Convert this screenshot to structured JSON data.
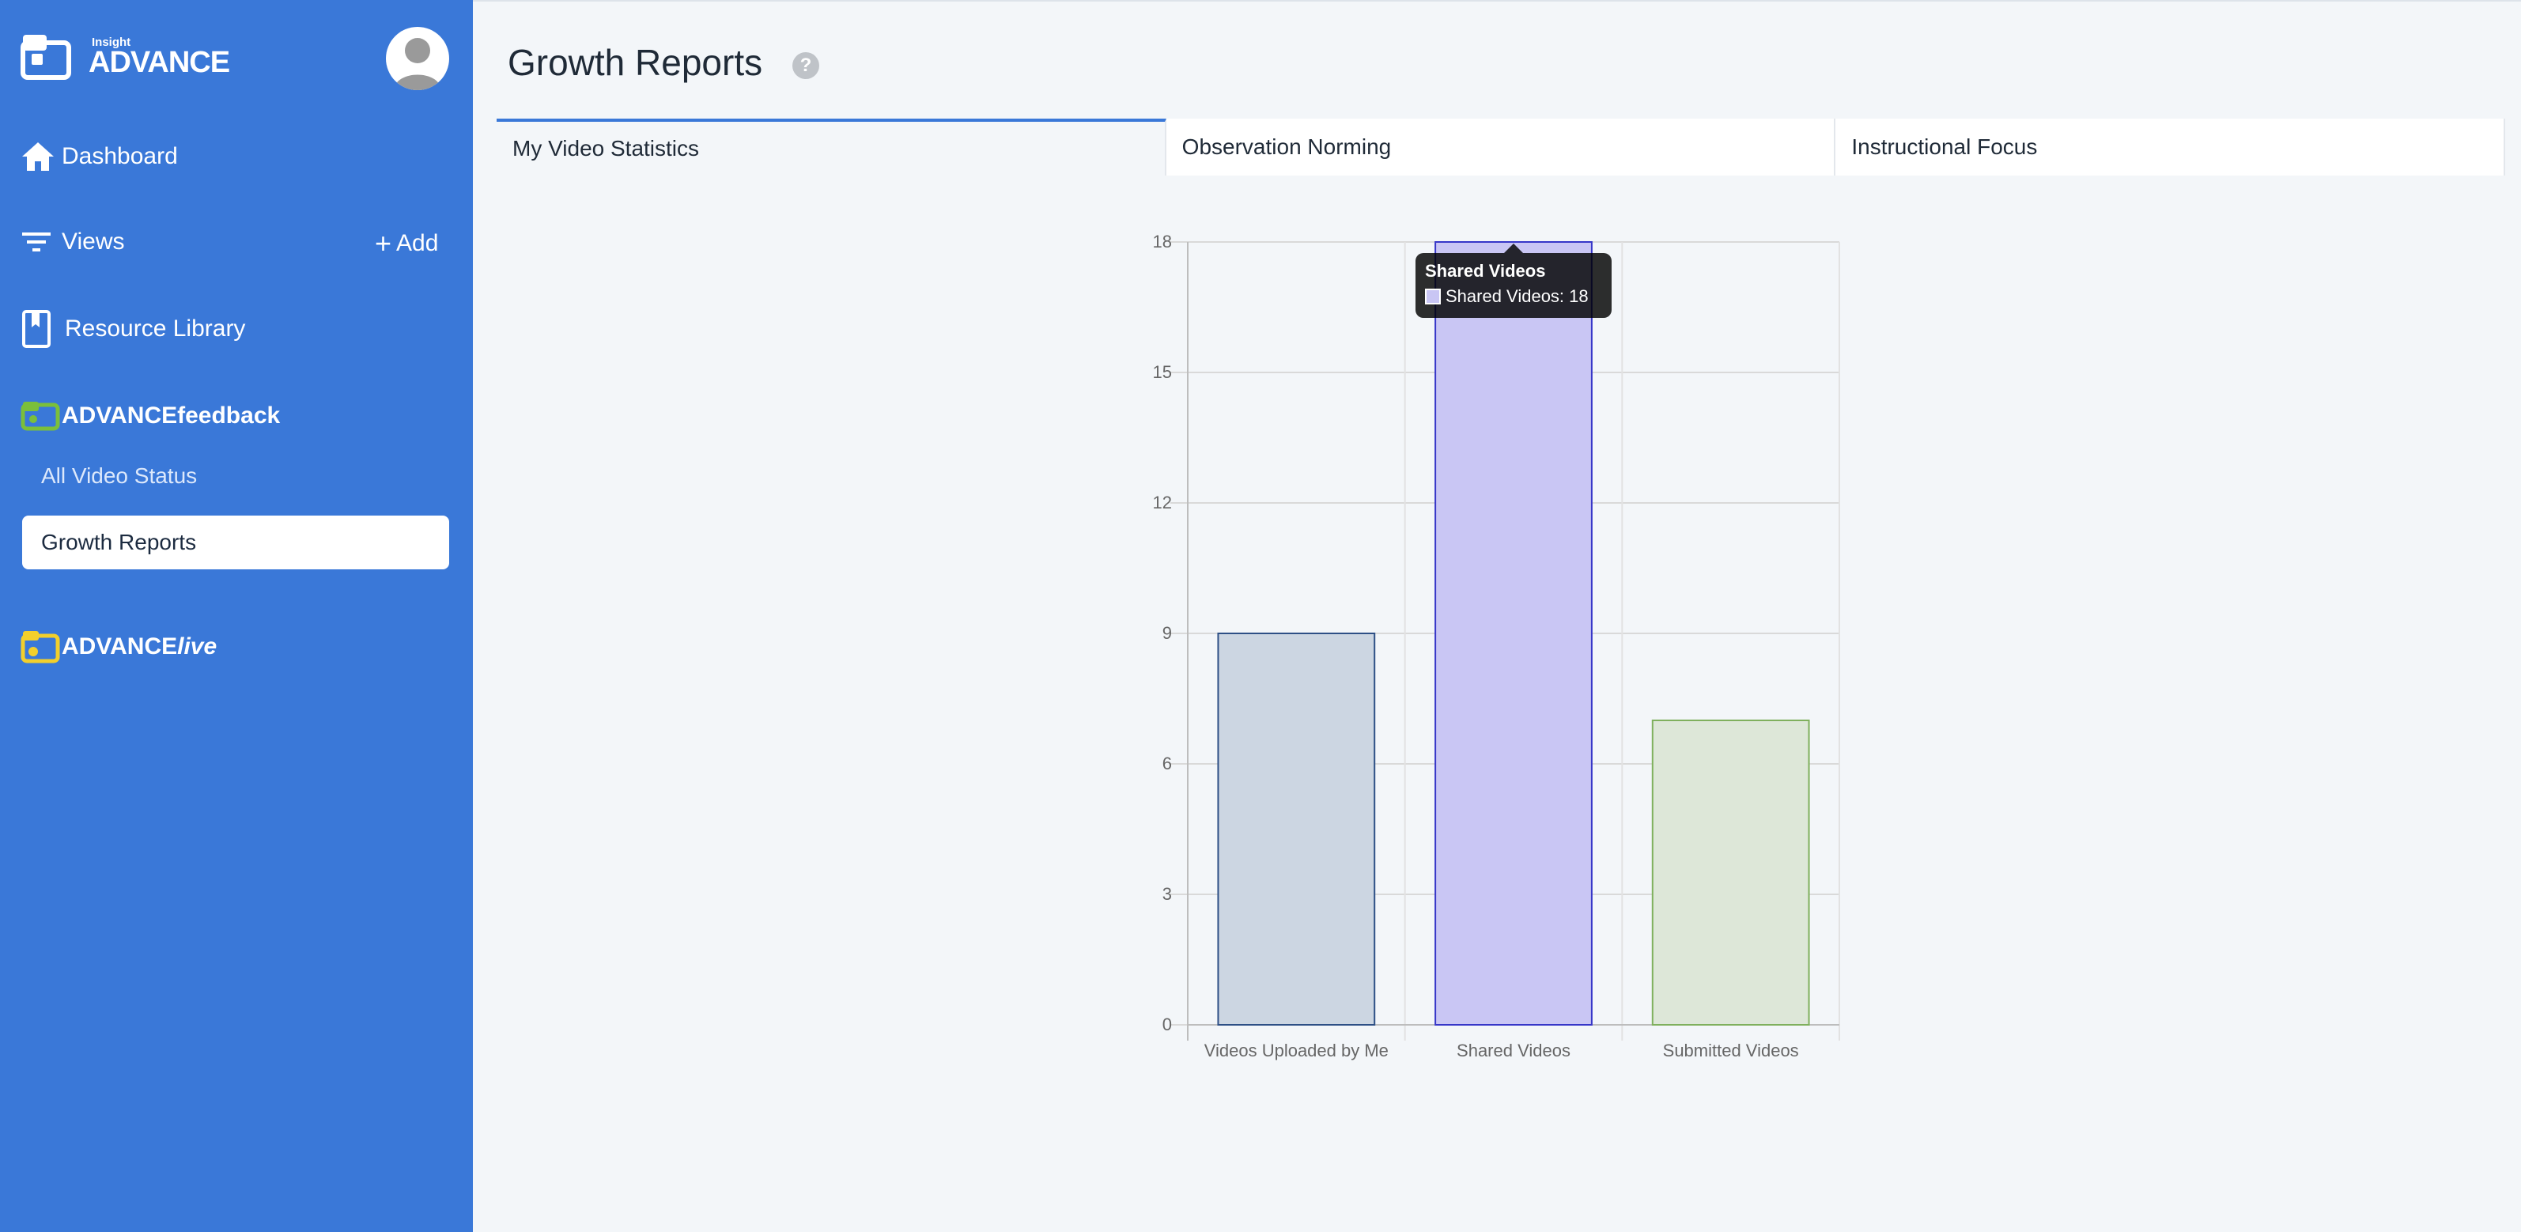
{
  "brand": {
    "small": "Insight",
    "big": "ADVANCE"
  },
  "sidebar": {
    "dashboard": "Dashboard",
    "views": "Views",
    "add": "Add",
    "resource_library": "Resource Library",
    "feedback": "ADVANCEfeedback",
    "all_video_status": "All Video Status",
    "growth_reports": "Growth Reports",
    "live_prefix": "ADVANCE",
    "live_suffix": "live"
  },
  "header": {
    "title": "Growth Reports",
    "help": "?"
  },
  "tabs": [
    "My Video Statistics",
    "Observation Norming",
    "Instructional Focus"
  ],
  "tooltip": {
    "title": "Shared Videos",
    "label": "Shared Videos: 18"
  },
  "colors": {
    "sidebar": "#3a78d8",
    "bar_uploaded": "#ccd6e2",
    "bar_uploaded_border": "#2d4f85",
    "bar_shared": "#c9c6f4",
    "bar_shared_border": "#3636c8",
    "bar_submitted": "#dde7d8",
    "bar_submitted_border": "#7fb05d"
  },
  "chart_data": {
    "type": "bar",
    "categories": [
      "Videos Uploaded by Me",
      "Shared Videos",
      "Submitted Videos"
    ],
    "values": [
      9,
      18,
      7
    ],
    "ylim": [
      0,
      18
    ],
    "yticks": [
      0,
      3,
      6,
      9,
      12,
      15,
      18
    ],
    "grid": true,
    "title": "",
    "xlabel": "",
    "ylabel": ""
  }
}
